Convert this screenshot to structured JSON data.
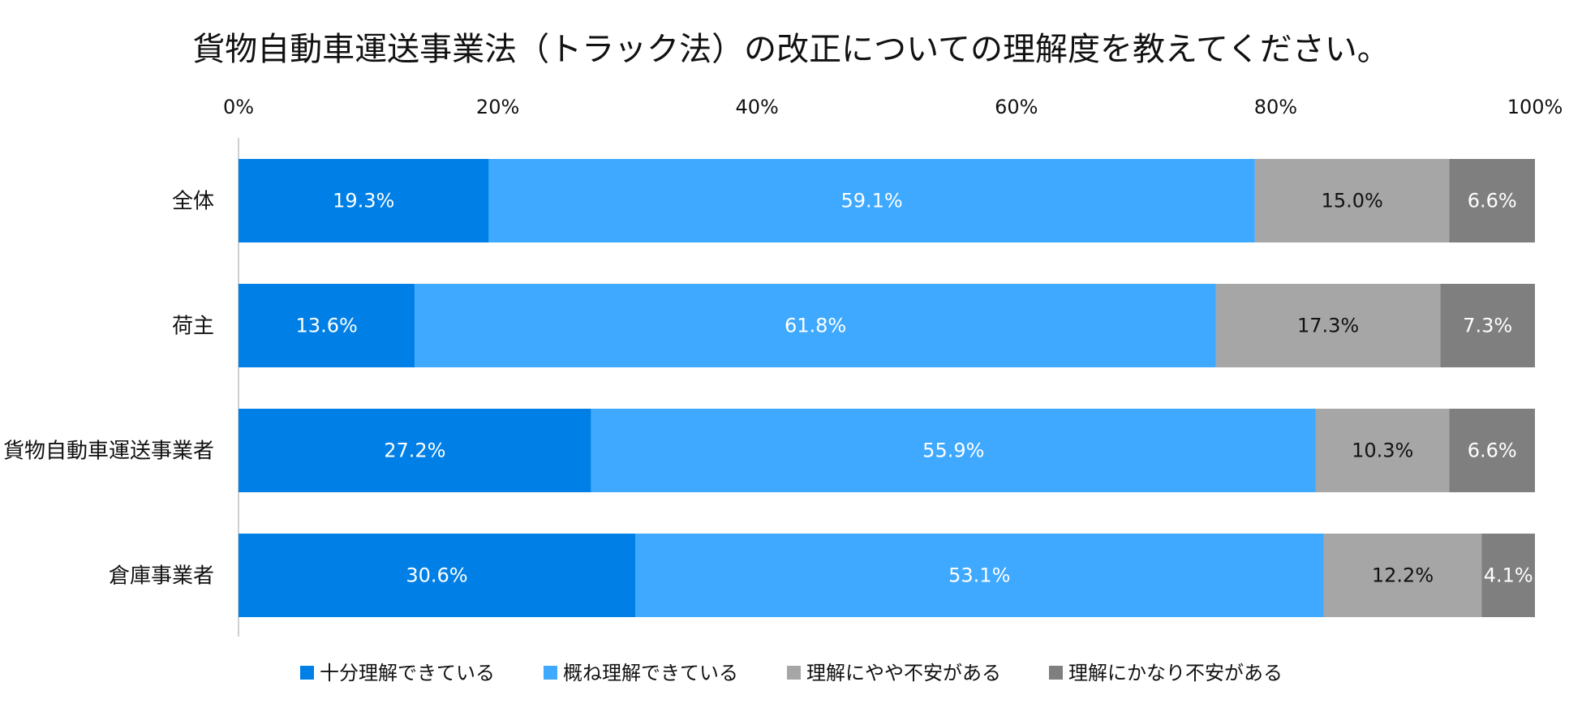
{
  "chart_data": {
    "type": "bar",
    "orientation": "horizontal",
    "stacked": "percent",
    "title": "貨物自動車運送事業法（トラック法）の改正についての理解度を教えてください。",
    "xlabel": "",
    "ylabel": "",
    "xlim": [
      0,
      100
    ],
    "x_ticks": [
      "0%",
      "20%",
      "40%",
      "60%",
      "80%",
      "100%"
    ],
    "categories": [
      "全体",
      "荷主",
      "貨物自動車運送事業者",
      "倉庫事業者"
    ],
    "series": [
      {
        "name": "十分理解できている",
        "color": "#0080E6",
        "label_color": "#ffffff",
        "values": [
          19.3,
          13.6,
          27.2,
          30.6
        ],
        "labels": [
          "19.3%",
          "13.6%",
          "27.2%",
          "30.6%"
        ]
      },
      {
        "name": "概ね理解できている",
        "color": "#3FA9FF",
        "label_color": "#ffffff",
        "values": [
          59.1,
          61.8,
          55.9,
          53.1
        ],
        "labels": [
          "59.1%",
          "61.8%",
          "55.9%",
          "53.1%"
        ]
      },
      {
        "name": "理解にやや不安がある",
        "color": "#A6A6A6",
        "label_color": "#111111",
        "values": [
          15.0,
          17.3,
          10.3,
          12.2
        ],
        "labels": [
          "15.0%",
          "17.3%",
          "10.3%",
          "12.2%"
        ]
      },
      {
        "name": "理解にかなり不安がある",
        "color": "#7F7F7F",
        "label_color": "#ffffff",
        "values": [
          6.6,
          7.3,
          6.6,
          4.1
        ],
        "labels": [
          "6.6%",
          "7.3%",
          "6.6%",
          "4.1%"
        ]
      }
    ],
    "legend_position": "bottom",
    "grid": false
  }
}
